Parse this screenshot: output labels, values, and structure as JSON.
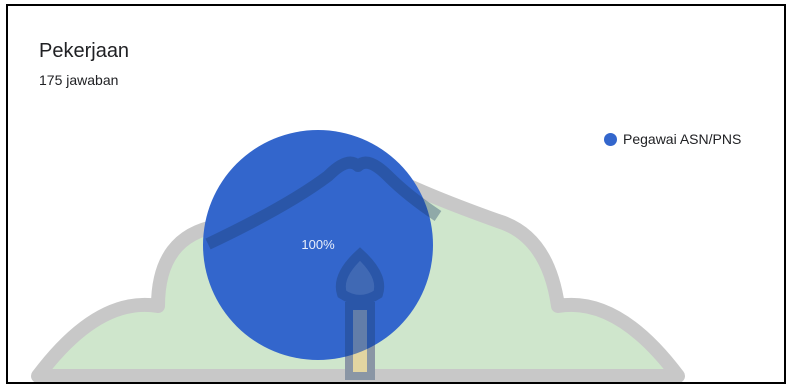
{
  "chart_data": {
    "type": "pie",
    "title": "Pekerjaan",
    "subtitle": "175 jawaban",
    "categories": [
      "Pegawai ASN/PNS"
    ],
    "values": [
      100
    ],
    "data_labels": [
      "100%"
    ],
    "legend_position": "top-right",
    "colors": [
      "#3366cc"
    ]
  },
  "colors": {
    "pie_blue": "#3366cc",
    "watermark_green": "#cfe6cc",
    "watermark_gray": "#c8c8c8",
    "watermark_yellow": "#fbeec0"
  },
  "watermark": {
    "type": "logo"
  }
}
